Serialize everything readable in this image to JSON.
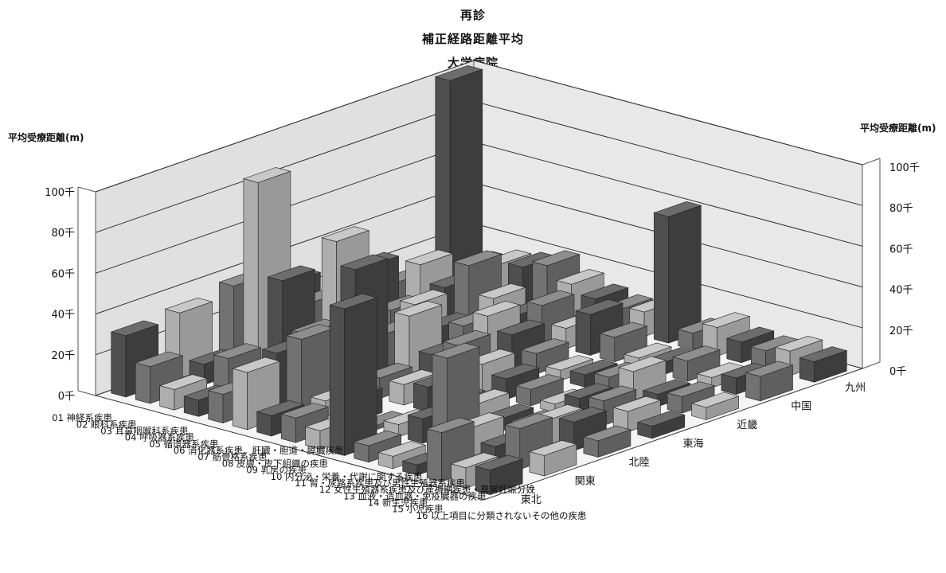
{
  "header": {
    "title_line1": "再診",
    "title_line2": "補正経路距離平均",
    "title_line3": "大学病院"
  },
  "axes": {
    "z_title_left": "平均受療距離(m)",
    "z_title_right": "平均受療距離(m)"
  },
  "colors": {
    "dark": "#6b6b6b",
    "mid": "#8f8f8f",
    "light": "#c4c4c4",
    "floor": "#f4f4f4",
    "wall": "#e0e0e0"
  },
  "chart_data": {
    "type": "bar",
    "subtype": "3d-bar",
    "title": "再診 補正経路距離平均 大学病院",
    "zlabel": "平均受療距離(m)",
    "zlim": [
      0,
      100000
    ],
    "z_ticks": [
      "0千",
      "20千",
      "40千",
      "60千",
      "80千",
      "100千"
    ],
    "grid": true,
    "categories": [
      "01 神経系疾患",
      "02 眼科系疾患",
      "03 耳鼻咽喉科系疾患",
      "04 呼吸器系疾患",
      "05 循環器系疾患",
      "06 消化器系疾患、肝臓・胆道・膵臓疾患",
      "07 筋骨格系疾患",
      "08 皮膚・皮下組織の疾患",
      "09 乳房の疾患",
      "10 内分泌・栄養・代謝に関する疾患",
      "11 腎・尿路系疾患及び男性生殖器系疾患",
      "12 女性生殖器系疾患及び産褥期疾患・異常妊娠分娩",
      "13 血液・造血器・免疫臓器の疾患",
      "14 新生児疾患",
      "15 小児疾患",
      "16 以上項目に分類されないその他の疾患"
    ],
    "regions": [
      "東北",
      "関東",
      "北陸",
      "東海",
      "近畿",
      "中国",
      "九州"
    ],
    "series": [
      {
        "name": "東北",
        "values": [
          30000,
          18000,
          10000,
          8000,
          14000,
          28000,
          10000,
          12000,
          9000,
          72000,
          8000,
          6000,
          5000,
          24000,
          10000,
          12000
        ]
      },
      {
        "name": "関東",
        "values": [
          32000,
          10000,
          16000,
          10000,
          25000,
          35000,
          8000,
          12000,
          2000,
          6000,
          12000,
          45000,
          14000,
          8000,
          20000,
          10000
        ]
      },
      {
        "name": "北陸",
        "values": [
          36000,
          90000,
          45000,
          22000,
          18000,
          60000,
          10000,
          10000,
          12000,
          8000,
          10000,
          6000,
          6000,
          12000,
          14000,
          8000
        ]
      },
      {
        "name": "東海",
        "values": [
          28000,
          22000,
          55000,
          8000,
          16000,
          28000,
          12000,
          20000,
          14000,
          10000,
          8000,
          4000,
          10000,
          12000,
          10000,
          6000
        ]
      },
      {
        "name": "近畿",
        "values": [
          6000,
          30000,
          12000,
          18000,
          10000,
          14000,
          22000,
          16000,
          10000,
          5000,
          6000,
          8000,
          14000,
          6000,
          8000,
          6000
        ]
      },
      {
        "name": "中国",
        "values": [
          10000,
          22000,
          14000,
          28000,
          15000,
          10000,
          18000,
          10000,
          20000,
          12000,
          5000,
          6000,
          10000,
          5000,
          8000,
          12000
        ]
      },
      {
        "name": "九州",
        "values": [
          100000,
          12000,
          16000,
          18000,
          22000,
          16000,
          12000,
          10000,
          12000,
          62000,
          8000,
          14000,
          10000,
          9000,
          12000,
          10000
        ]
      }
    ]
  }
}
